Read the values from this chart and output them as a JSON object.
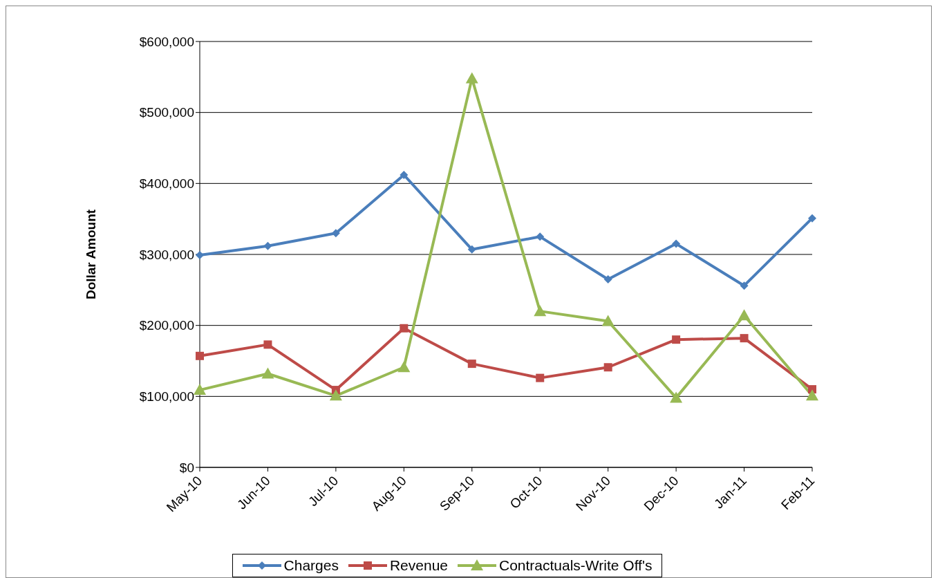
{
  "chart_data": {
    "type": "line",
    "ylabel": "Dollar Amount",
    "categories": [
      "May-10",
      "Jun-10",
      "Jul-10",
      "Aug-10",
      "Sep-10",
      "Oct-10",
      "Nov-10",
      "Dec-10",
      "Jan-11",
      "Feb-11"
    ],
    "series": [
      {
        "name": "Charges",
        "color": "#4a7ebb",
        "marker": "diamond",
        "values": [
          299000,
          312000,
          330000,
          412000,
          307000,
          325000,
          265000,
          315000,
          256000,
          351000
        ]
      },
      {
        "name": "Revenue",
        "color": "#be4b48",
        "marker": "square",
        "values": [
          157000,
          173000,
          109000,
          196000,
          146000,
          126000,
          141000,
          180000,
          182000,
          110000
        ]
      },
      {
        "name": "Contractuals-Write Off's",
        "color": "#98b954",
        "marker": "triangle",
        "values": [
          109000,
          132000,
          101000,
          141000,
          548000,
          220000,
          206000,
          98000,
          214000,
          101000
        ]
      }
    ],
    "ylim": [
      0,
      600000
    ],
    "yticks": [
      {
        "value": 0,
        "label": "$0"
      },
      {
        "value": 100000,
        "label": "$100,000"
      },
      {
        "value": 200000,
        "label": "$200,000"
      },
      {
        "value": 300000,
        "label": "$300,000"
      },
      {
        "value": 400000,
        "label": "$400,000"
      },
      {
        "value": 500000,
        "label": "$500,000"
      },
      {
        "value": 600000,
        "label": "$600,000"
      }
    ],
    "grid": "y",
    "legend": "bottom"
  }
}
